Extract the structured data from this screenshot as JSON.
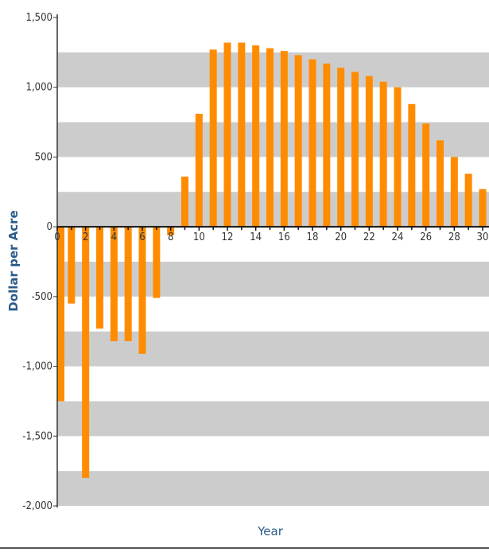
{
  "chart_data": {
    "type": "bar",
    "title": "",
    "xlabel": "Year",
    "ylabel": "Dollar per Acre",
    "x": [
      0,
      1,
      2,
      3,
      4,
      5,
      6,
      7,
      8,
      9,
      10,
      11,
      12,
      13,
      14,
      15,
      16,
      17,
      18,
      19,
      20,
      21,
      22,
      23,
      24,
      25,
      26,
      27,
      28,
      29,
      30
    ],
    "values": [
      -1250,
      -550,
      -1800,
      -730,
      -820,
      -820,
      -910,
      -510,
      -60,
      360,
      810,
      1270,
      1320,
      1320,
      1300,
      1280,
      1260,
      1230,
      1200,
      1170,
      1140,
      1110,
      1080,
      1040,
      1000,
      880,
      740,
      620,
      500,
      380,
      270
    ],
    "x_ticks": [
      "0",
      "2",
      "4",
      "6",
      "8",
      "10",
      "12",
      "14",
      "16",
      "18",
      "20",
      "22",
      "24",
      "26",
      "28",
      "30"
    ],
    "y_ticks": [
      "1,500",
      "1,000",
      "500",
      "0",
      "-500",
      "-1,000",
      "-1,500",
      "-2,000"
    ],
    "ylim": [
      -2000,
      1500
    ],
    "xlim": [
      0,
      30
    ],
    "bar_color": "#ff8c00",
    "band_color": "#cccccc",
    "grid": "alternating horizontal bands",
    "legend": "none"
  }
}
